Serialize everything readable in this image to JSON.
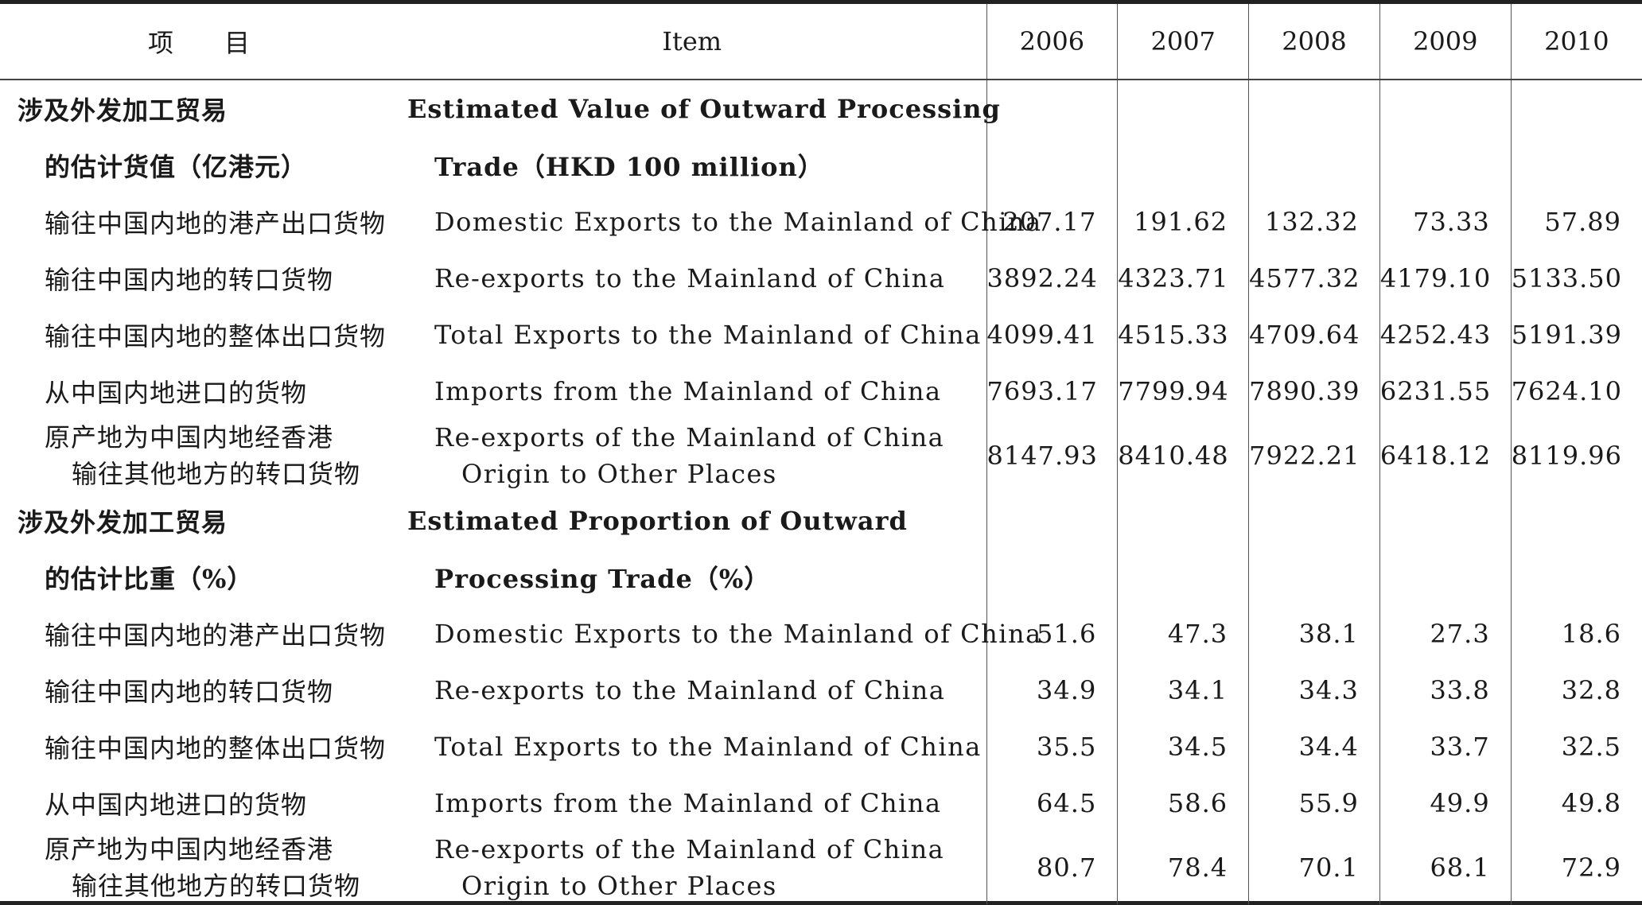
{
  "header": {
    "col_cn": "项　　目",
    "col_en": "Item",
    "years": [
      "2006",
      "2007",
      "2008",
      "2009",
      "2010"
    ]
  },
  "sections": [
    {
      "title_cn_1": "涉及外发加工贸易",
      "title_en_1": "Estimated Value of Outward Processing",
      "title_cn_2": "的估计货值（亿港元）",
      "title_en_2": "Trade（HKD 100 million）",
      "rows": [
        {
          "cn": "输往中国内地的港产出口货物",
          "en": "Domestic Exports to the Mainland of China",
          "values": [
            "207.17",
            "191.62",
            "132.32",
            "73.33",
            "57.89"
          ]
        },
        {
          "cn": "输往中国内地的转口货物",
          "en": "Re-exports to the Mainland of China",
          "values": [
            "3892.24",
            "4323.71",
            "4577.32",
            "4179.10",
            "5133.50"
          ]
        },
        {
          "cn": "输往中国内地的整体出口货物",
          "en": "Total Exports to the Mainland of China",
          "values": [
            "4099.41",
            "4515.33",
            "4709.64",
            "4252.43",
            "5191.39"
          ]
        },
        {
          "cn": "从中国内地进口的货物",
          "en": "Imports from the Mainland of China",
          "values": [
            "7693.17",
            "7799.94",
            "7890.39",
            "6231.55",
            "7624.10"
          ]
        },
        {
          "cn_1": "原产地为中国内地经香港",
          "cn_2": "输往其他地方的转口货物",
          "en_1": "Re-exports of the Mainland of China",
          "en_2": "Origin to Other Places",
          "values": [
            "8147.93",
            "8410.48",
            "7922.21",
            "6418.12",
            "8119.96"
          ]
        }
      ]
    },
    {
      "title_cn_1": "涉及外发加工贸易",
      "title_en_1": "Estimated Proportion of Outward",
      "title_cn_2": "的估计比重（%）",
      "title_en_2": "Processing Trade（%）",
      "rows": [
        {
          "cn": "输往中国内地的港产出口货物",
          "en": "Domestic Exports to the Mainland of China",
          "values": [
            "51.6",
            "47.3",
            "38.1",
            "27.3",
            "18.6"
          ]
        },
        {
          "cn": "输往中国内地的转口货物",
          "en": "Re-exports to the Mainland of China",
          "values": [
            "34.9",
            "34.1",
            "34.3",
            "33.8",
            "32.8"
          ]
        },
        {
          "cn": "输往中国内地的整体出口货物",
          "en": "Total Exports to the Mainland of China",
          "values": [
            "35.5",
            "34.5",
            "34.4",
            "33.7",
            "32.5"
          ]
        },
        {
          "cn": "从中国内地进口的货物",
          "en": "Imports from the Mainland of China",
          "values": [
            "64.5",
            "58.6",
            "55.9",
            "49.9",
            "49.8"
          ]
        },
        {
          "cn_1": "原产地为中国内地经香港",
          "cn_2": "输往其他地方的转口货物",
          "en_1": "Re-exports of the Mainland of China",
          "en_2": "Origin to Other Places",
          "values": [
            "80.7",
            "78.4",
            "70.1",
            "68.1",
            "72.9"
          ]
        }
      ]
    }
  ]
}
